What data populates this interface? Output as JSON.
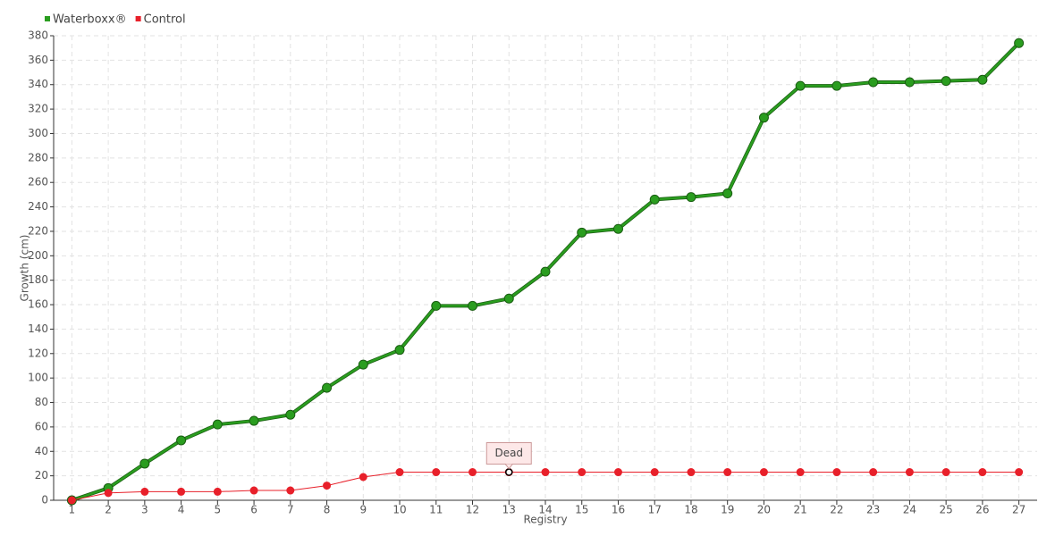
{
  "chart_data": {
    "type": "line",
    "categories": [
      "1",
      "2",
      "3",
      "4",
      "5",
      "6",
      "7",
      "8",
      "9",
      "10",
      "11",
      "12",
      "13",
      "14",
      "15",
      "16",
      "17",
      "18",
      "19",
      "20",
      "21",
      "22",
      "23",
      "24",
      "25",
      "26",
      "27"
    ],
    "series": [
      {
        "name": "Waterboxx®",
        "color": "#2a9d1f",
        "values": [
          0,
          10,
          30,
          49,
          62,
          65,
          70,
          92,
          111,
          123,
          159,
          159,
          165,
          187,
          219,
          222,
          246,
          248,
          251,
          313,
          339,
          339,
          342,
          342,
          343,
          344,
          374
        ]
      },
      {
        "name": "Control",
        "color": "#e8202a",
        "values": [
          0,
          6,
          7,
          7,
          7,
          8,
          8,
          12,
          19,
          23,
          23,
          23,
          23,
          23,
          23,
          23,
          23,
          23,
          23,
          23,
          23,
          23,
          23,
          23,
          23,
          23,
          23
        ]
      }
    ],
    "ylim": [
      0,
      380
    ],
    "yticks": [
      0,
      20,
      40,
      60,
      80,
      100,
      120,
      140,
      160,
      180,
      200,
      220,
      240,
      260,
      280,
      300,
      320,
      340,
      360,
      380
    ],
    "y_label": "Growth (cm)",
    "x_label": "Registry",
    "grid": true,
    "legend": "top-left",
    "annotations": [
      {
        "label": "Dead",
        "x": "13",
        "series": "Control"
      }
    ]
  }
}
